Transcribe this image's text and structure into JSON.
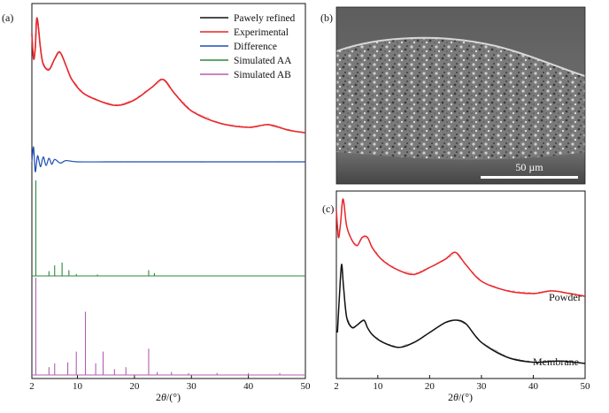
{
  "panels": {
    "a": {
      "tag": "(a)"
    },
    "b": {
      "tag": "(b)",
      "scale_bar_label": "50 µm"
    },
    "c": {
      "tag": "(c)"
    }
  },
  "axis_title": {
    "theta": "θ",
    "prefix": "2",
    "suffix": "/(°)"
  },
  "colors": {
    "pawley": "#111111",
    "experimental": "#e8262a",
    "difference": "#1f4fb3",
    "sim_aa": "#2a8a3a",
    "sim_ab": "#b35db3",
    "membrane": "#111111",
    "powder": "#e8262a"
  },
  "chart_data": [
    {
      "type": "line",
      "panel": "a",
      "xlabel": "2θ/(°)",
      "xlim": [
        2,
        50
      ],
      "xticks": [
        2,
        10,
        20,
        30,
        40,
        50
      ],
      "y_ticks_shown": false,
      "legend_position": "top-right",
      "series": [
        {
          "name": "Pawely refined",
          "x": [
            2,
            2.3,
            2.6,
            2.9,
            3.5,
            4,
            5,
            6,
            6.9,
            8,
            9,
            11,
            14,
            17,
            20,
            23,
            25,
            27,
            30,
            35,
            40,
            43.5,
            47,
            50
          ],
          "y": [
            0.88,
            0.7,
            0.78,
            1.0,
            0.78,
            0.66,
            0.62,
            0.7,
            0.75,
            0.65,
            0.55,
            0.45,
            0.39,
            0.36,
            0.4,
            0.49,
            0.55,
            0.45,
            0.32,
            0.23,
            0.2,
            0.22,
            0.18,
            0.16
          ]
        },
        {
          "name": "Experimental",
          "x": [
            2,
            2.3,
            2.6,
            2.9,
            3.5,
            4,
            5,
            6,
            6.9,
            8,
            9,
            11,
            14,
            17,
            20,
            23,
            25,
            27,
            30,
            35,
            40,
            43.5,
            47,
            50
          ],
          "y": [
            0.88,
            0.7,
            0.78,
            1.0,
            0.78,
            0.66,
            0.62,
            0.7,
            0.75,
            0.65,
            0.55,
            0.45,
            0.39,
            0.36,
            0.4,
            0.49,
            0.55,
            0.45,
            0.32,
            0.23,
            0.2,
            0.22,
            0.18,
            0.16
          ]
        },
        {
          "name": "Difference",
          "x": [
            2,
            2.3,
            2.6,
            3,
            3.5,
            4,
            4.5,
            5,
            5.5,
            6,
            7,
            8,
            10,
            15,
            20,
            30,
            40,
            50
          ],
          "y": [
            0.0,
            0.12,
            -0.08,
            0.05,
            -0.04,
            0.04,
            -0.03,
            0.03,
            -0.02,
            0.02,
            -0.01,
            0.01,
            0.0,
            0.0,
            0.0,
            0.0,
            0.0,
            0.0
          ]
        },
        {
          "name": "Simulated AA",
          "peaks_x": [
            2.7,
            5.0,
            6.0,
            7.3,
            8.5,
            9.8,
            13.5,
            22.5,
            23.5
          ],
          "peaks_y": [
            1.0,
            0.05,
            0.11,
            0.14,
            0.06,
            0.02,
            0.015,
            0.06,
            0.03
          ]
        },
        {
          "name": "Simulated AB",
          "peaks_x": [
            2.7,
            5.0,
            6.0,
            8.3,
            9.8,
            11.4,
            13.2,
            14.5,
            16.5,
            18.5,
            22.5,
            24.0,
            26.5,
            29.5,
            34.5,
            40,
            45.5
          ],
          "peaks_y": [
            1.0,
            0.08,
            0.12,
            0.13,
            0.24,
            0.65,
            0.12,
            0.24,
            0.06,
            0.08,
            0.27,
            0.03,
            0.03,
            0.02,
            0.02,
            0.02,
            0.02
          ]
        }
      ]
    },
    {
      "type": "line",
      "panel": "c",
      "xlabel": "2θ/(°)",
      "xlim": [
        2,
        50
      ],
      "xticks": [
        2,
        10,
        20,
        30,
        40,
        50
      ],
      "y_ticks_shown": false,
      "curve_labels": [
        "Powder",
        "Membrane"
      ],
      "series": [
        {
          "name": "Powder",
          "x": [
            2,
            2.4,
            2.8,
            3.3,
            4,
            5,
            6,
            7,
            8,
            9,
            11,
            14,
            17,
            20,
            23,
            25,
            27,
            30,
            35,
            40,
            43.5,
            47,
            50
          ],
          "y": [
            0.92,
            0.72,
            0.82,
            1.0,
            0.8,
            0.7,
            0.66,
            0.72,
            0.72,
            0.64,
            0.55,
            0.48,
            0.45,
            0.5,
            0.56,
            0.61,
            0.52,
            0.4,
            0.33,
            0.31,
            0.33,
            0.31,
            0.29
          ]
        },
        {
          "name": "Membrane",
          "x": [
            2.2,
            2.6,
            3,
            3.4,
            4,
            5,
            6,
            7.3,
            8,
            9,
            11,
            14,
            17,
            20,
            23,
            25,
            27,
            30,
            35,
            40,
            45,
            50
          ],
          "y": [
            0.3,
            0.6,
            0.85,
            0.66,
            0.42,
            0.34,
            0.36,
            0.4,
            0.34,
            0.28,
            0.22,
            0.18,
            0.22,
            0.3,
            0.38,
            0.4,
            0.37,
            0.22,
            0.1,
            0.06,
            0.07,
            0.05
          ]
        }
      ]
    }
  ]
}
